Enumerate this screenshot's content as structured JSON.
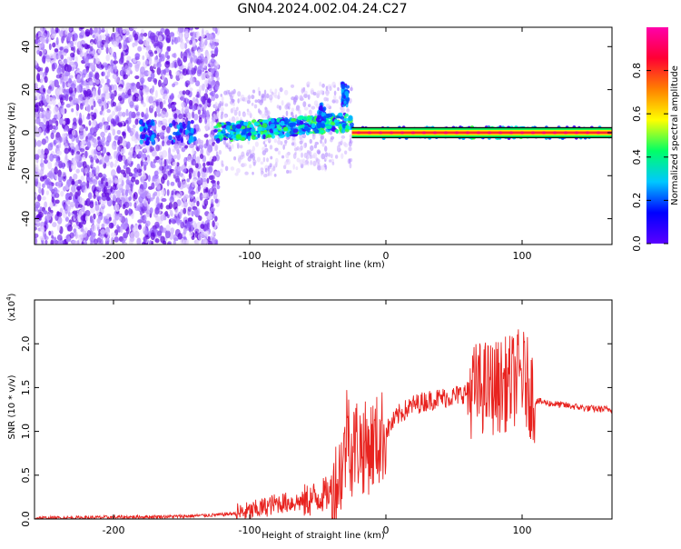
{
  "title": "GN04.2024.002.04.24.C27",
  "colors": {
    "snr_line": "#e8231f",
    "background": "#ffffff",
    "colorbar_stops": [
      "#5a00ff",
      "#0000ff",
      "#00c8ff",
      "#00ff66",
      "#ffff00",
      "#ff8000",
      "#ff0033",
      "#ff00aa"
    ]
  },
  "chart_data": [
    {
      "type": "heatmap",
      "xlabel": "Height of straight line (km)",
      "ylabel": "Frequency (Hz)",
      "xlim": [
        -258,
        166
      ],
      "ylim": [
        -52,
        49
      ],
      "x_ticks": [
        -200,
        -100,
        0,
        100
      ],
      "y_ticks": [
        -40,
        -20,
        0,
        20,
        40
      ],
      "colorbar": {
        "label": "Normalized spectral amplitude",
        "range": [
          0.0,
          1.0
        ],
        "ticks": [
          0.0,
          0.2,
          0.4,
          0.6,
          0.8
        ]
      },
      "grid": false
    },
    {
      "type": "line",
      "xlabel": "Height of straight line (km)",
      "ylabel": "SNR (10 * v/v)",
      "y_multiplier": "(x10",
      "y_multiplier_exp": "4",
      "xlim": [
        -258,
        166
      ],
      "ylim": [
        0,
        2.5
      ],
      "x_ticks": [
        -200,
        -100,
        0,
        100
      ],
      "y_ticks": [
        0.0,
        0.5,
        1.0,
        1.5,
        2.0
      ],
      "series": [
        {
          "x": [
            -258,
            -200,
            -150,
            -120,
            -100,
            -80,
            -60,
            -50,
            -45,
            -40,
            -35,
            -30,
            -28,
            -25,
            -22,
            -20,
            -15,
            -10,
            -5,
            0,
            10,
            20,
            30,
            40,
            50,
            60,
            70,
            80,
            90,
            95,
            100,
            105,
            110,
            120,
            130,
            140,
            150,
            166
          ],
          "y": [
            0.01,
            0.02,
            0.03,
            0.05,
            0.08,
            0.18,
            0.2,
            0.25,
            0.28,
            0.3,
            0.45,
            0.75,
            1.2,
            0.7,
            0.9,
            0.85,
            0.8,
            0.85,
            0.9,
            1.0,
            1.2,
            1.3,
            1.35,
            1.38,
            1.4,
            1.45,
            1.5,
            1.5,
            1.55,
            1.6,
            1.65,
            1.5,
            1.35,
            1.32,
            1.3,
            1.28,
            1.26,
            1.25
          ]
        }
      ],
      "grid": false
    }
  ]
}
